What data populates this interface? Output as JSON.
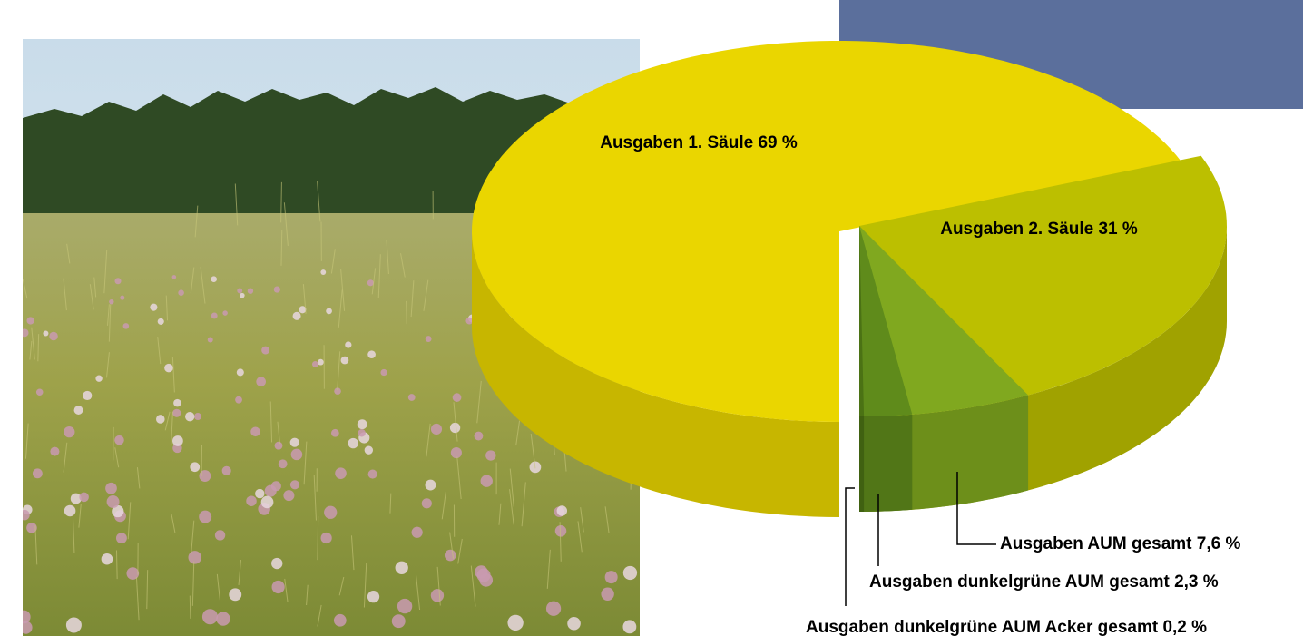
{
  "chart_data": {
    "type": "pie",
    "values": [
      69,
      31
    ],
    "value_labels": [
      "Ausgaben 1. Säule 69 %",
      "Ausgaben 2. Säule 31 %"
    ],
    "colors": [
      "#ead600",
      "#bcbf00"
    ],
    "sub_slices": {
      "values": [
        7.6,
        2.3,
        0.2
      ],
      "value_labels": [
        "Ausgaben AUM gesamt 7,6 %",
        "Ausgaben dunkelgrüne AUM gesamt 2,3 %",
        "Ausgaben dunkelgrüne AUM Acker gesamt 0,2 %"
      ],
      "colors": [
        "#80a81f",
        "#5f8b1b",
        "#4b7214"
      ]
    }
  }
}
